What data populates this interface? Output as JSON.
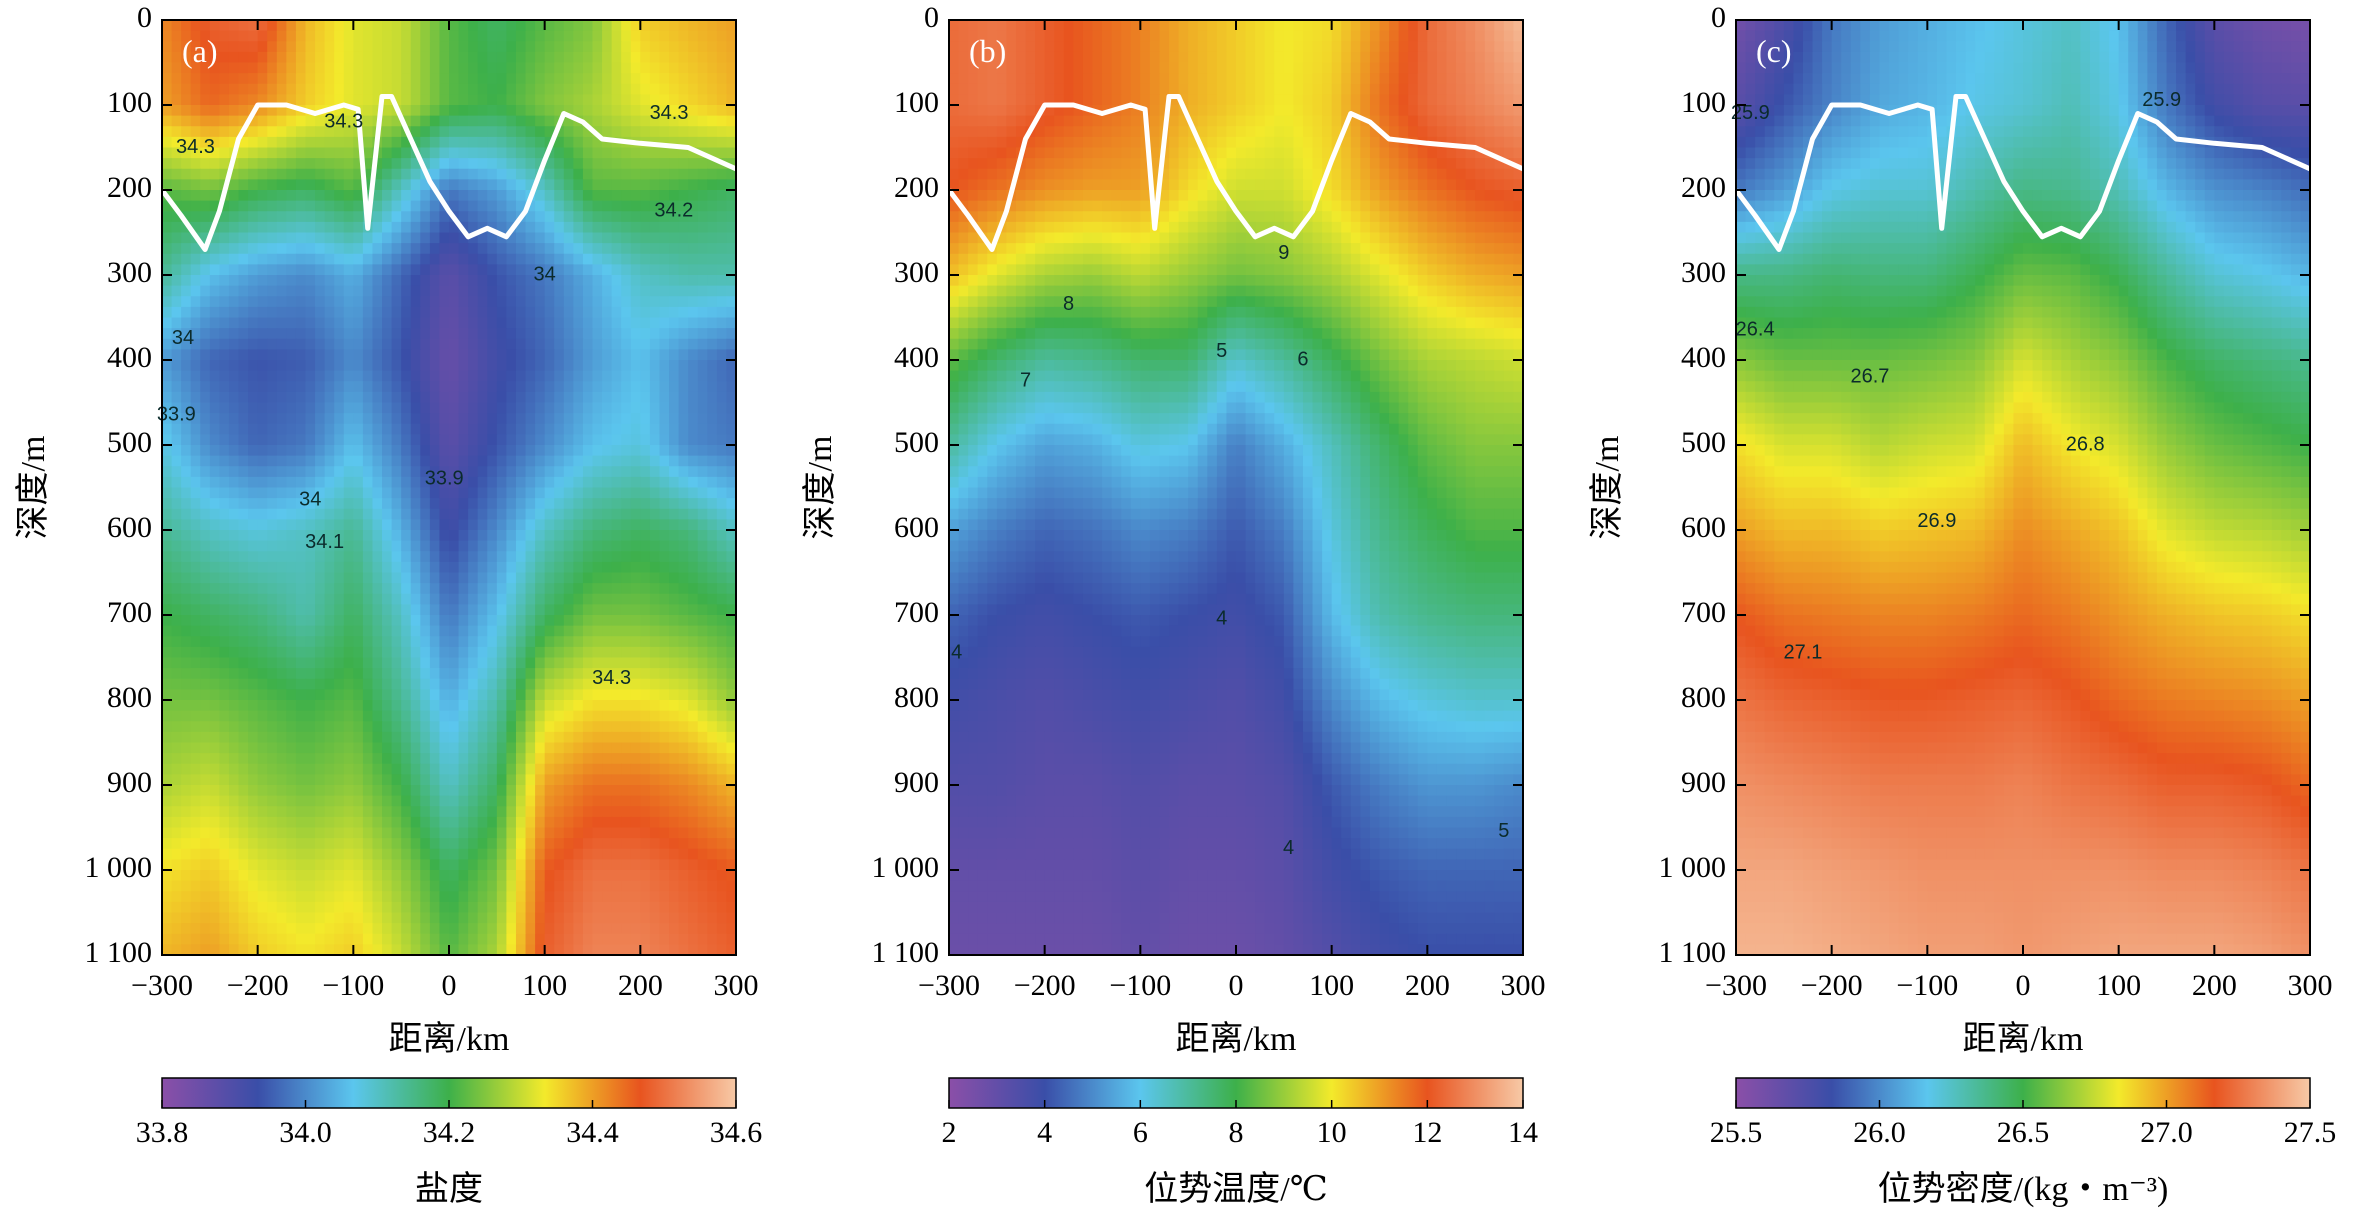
{
  "chart_data": [
    {
      "type": "heatmap",
      "panel_label": "(a)",
      "xlabel": "距离/km",
      "ylabel": "深度/m",
      "xlim": [
        -300,
        300
      ],
      "ylim": [
        1100,
        0
      ],
      "x_ticks": [
        -300,
        -200,
        -100,
        0,
        100,
        200,
        300
      ],
      "x_tick_labels": [
        "−300",
        "−200",
        "−100",
        "0",
        "100",
        "200",
        "300"
      ],
      "y_ticks": [
        0,
        100,
        200,
        300,
        400,
        500,
        600,
        700,
        800,
        900,
        1000,
        1100
      ],
      "y_tick_labels": [
        "0",
        "100",
        "200",
        "300",
        "400",
        "500",
        "600",
        "700",
        "800",
        "900",
        "1 000",
        "1 100"
      ],
      "colorbar": {
        "label": "盐度",
        "range": [
          33.8,
          34.6
        ],
        "ticks": [
          33.8,
          34.0,
          34.2,
          34.4,
          34.6
        ],
        "tick_labels": [
          "33.8",
          "34.0",
          "34.2",
          "34.4",
          "34.6"
        ],
        "colors": [
          "#8b4fa8",
          "#3a4ea8",
          "#5bc6ee",
          "#3db04a",
          "#f3ea2b",
          "#e8541f",
          "#f7c9a6"
        ]
      },
      "mixed_layer_line": {
        "color": "#ffffff",
        "x": [
          -300,
          -280,
          -255,
          -240,
          -220,
          -200,
          -170,
          -140,
          -110,
          -95,
          -85,
          -70,
          -60,
          -40,
          -20,
          0,
          20,
          40,
          60,
          80,
          100,
          120,
          140,
          160,
          200,
          250,
          300
        ],
        "y": [
          200,
          230,
          270,
          225,
          140,
          100,
          100,
          110,
          100,
          105,
          245,
          90,
          90,
          140,
          190,
          225,
          255,
          245,
          255,
          225,
          165,
          110,
          120,
          140,
          145,
          150,
          175
        ]
      },
      "contour_labels": [
        {
          "text": "34.3",
          "x": -265,
          "y": 150
        },
        {
          "text": "34.3",
          "x": -110,
          "y": 120
        },
        {
          "text": "34.3",
          "x": 230,
          "y": 110
        },
        {
          "text": "34.2",
          "x": 235,
          "y": 225
        },
        {
          "text": "34",
          "x": 100,
          "y": 300
        },
        {
          "text": "34",
          "x": -278,
          "y": 375
        },
        {
          "text": "33.9",
          "x": -285,
          "y": 465
        },
        {
          "text": "33.9",
          "x": -5,
          "y": 540
        },
        {
          "text": "34",
          "x": -145,
          "y": 565
        },
        {
          "text": "34.1",
          "x": -130,
          "y": 615
        },
        {
          "text": "34.3",
          "x": 170,
          "y": 775
        }
      ],
      "x_samples": [
        -300,
        -250,
        -200,
        -150,
        -100,
        -50,
        0,
        50,
        100,
        150,
        200,
        250,
        300
      ],
      "y_samples": [
        0,
        100,
        200,
        300,
        400,
        500,
        600,
        700,
        800,
        900,
        1000,
        1100
      ],
      "values": [
        [
          34.42,
          34.48,
          34.5,
          34.38,
          34.32,
          34.3,
          34.22,
          34.18,
          34.22,
          34.25,
          34.36,
          34.38,
          34.4
        ],
        [
          34.4,
          34.45,
          34.42,
          34.36,
          34.32,
          34.3,
          34.22,
          34.2,
          34.25,
          34.28,
          34.32,
          34.35,
          34.38
        ],
        [
          34.22,
          34.24,
          34.2,
          34.18,
          34.22,
          34.1,
          33.98,
          34.02,
          34.1,
          34.22,
          34.22,
          34.2,
          34.18
        ],
        [
          34.14,
          34.06,
          34.02,
          34.0,
          34.04,
          33.96,
          33.88,
          33.94,
          33.98,
          34.04,
          34.1,
          34.12,
          34.12
        ],
        [
          34.02,
          33.96,
          33.94,
          33.95,
          34.0,
          33.94,
          33.86,
          33.92,
          33.96,
          34.02,
          34.06,
          34.0,
          33.96
        ],
        [
          34.08,
          34.0,
          33.96,
          33.98,
          34.06,
          33.98,
          33.88,
          33.94,
          34.0,
          34.06,
          34.08,
          34.0,
          33.98
        ],
        [
          34.14,
          34.1,
          34.08,
          34.1,
          34.14,
          34.04,
          33.92,
          34.0,
          34.1,
          34.16,
          34.18,
          34.16,
          34.1
        ],
        [
          34.2,
          34.18,
          34.16,
          34.12,
          34.18,
          34.1,
          33.98,
          34.06,
          34.18,
          34.24,
          34.24,
          34.22,
          34.2
        ],
        [
          34.24,
          34.24,
          34.22,
          34.2,
          34.22,
          34.14,
          34.04,
          34.12,
          34.3,
          34.34,
          34.34,
          34.32,
          34.26
        ],
        [
          34.28,
          34.3,
          34.26,
          34.24,
          34.26,
          34.2,
          34.1,
          34.18,
          34.4,
          34.44,
          34.44,
          34.42,
          34.38
        ],
        [
          34.34,
          34.36,
          34.32,
          34.3,
          34.32,
          34.26,
          34.18,
          34.24,
          34.46,
          34.5,
          34.5,
          34.48,
          34.46
        ],
        [
          34.38,
          34.4,
          34.36,
          34.34,
          34.36,
          34.3,
          34.22,
          34.28,
          34.48,
          34.52,
          34.52,
          34.5,
          34.48
        ]
      ]
    },
    {
      "type": "heatmap",
      "panel_label": "(b)",
      "xlabel": "距离/km",
      "ylabel": "深度/m",
      "xlim": [
        -300,
        300
      ],
      "ylim": [
        1100,
        0
      ],
      "x_ticks": [
        -300,
        -200,
        -100,
        0,
        100,
        200,
        300
      ],
      "x_tick_labels": [
        "−300",
        "−200",
        "−100",
        "0",
        "100",
        "200",
        "300"
      ],
      "y_ticks": [
        0,
        100,
        200,
        300,
        400,
        500,
        600,
        700,
        800,
        900,
        1000,
        1100
      ],
      "y_tick_labels": [
        "0",
        "100",
        "200",
        "300",
        "400",
        "500",
        "600",
        "700",
        "800",
        "900",
        "1 000",
        "1 100"
      ],
      "colorbar": {
        "label": "位势温度/℃",
        "range": [
          2,
          14
        ],
        "ticks": [
          2,
          4,
          6,
          8,
          10,
          12,
          14
        ],
        "tick_labels": [
          "2",
          "4",
          "6",
          "8",
          "10",
          "12",
          "14"
        ],
        "colors": [
          "#8b4fa8",
          "#3a4ea8",
          "#5bc6ee",
          "#3db04a",
          "#f3ea2b",
          "#e8541f",
          "#f7c9a6"
        ]
      },
      "mixed_layer_line": {
        "color": "#ffffff",
        "x": [
          -300,
          -280,
          -255,
          -240,
          -220,
          -200,
          -170,
          -140,
          -110,
          -95,
          -85,
          -70,
          -60,
          -40,
          -20,
          0,
          20,
          40,
          60,
          80,
          100,
          120,
          140,
          160,
          200,
          250,
          300
        ],
        "y": [
          200,
          230,
          270,
          225,
          140,
          100,
          100,
          110,
          100,
          105,
          245,
          90,
          90,
          140,
          190,
          225,
          255,
          245,
          255,
          225,
          165,
          110,
          120,
          140,
          145,
          150,
          175
        ]
      },
      "contour_labels": [
        {
          "text": "9",
          "x": 50,
          "y": 275
        },
        {
          "text": "8",
          "x": -175,
          "y": 335
        },
        {
          "text": "7",
          "x": -220,
          "y": 425
        },
        {
          "text": "6",
          "x": 70,
          "y": 400
        },
        {
          "text": "5",
          "x": -15,
          "y": 390
        },
        {
          "text": "4",
          "x": -15,
          "y": 705
        },
        {
          "text": "4",
          "x": -292,
          "y": 745
        },
        {
          "text": "4",
          "x": 55,
          "y": 975
        },
        {
          "text": "5",
          "x": 280,
          "y": 955
        }
      ],
      "x_samples": [
        -300,
        -250,
        -200,
        -150,
        -100,
        -50,
        0,
        50,
        100,
        150,
        200,
        250,
        300
      ],
      "y_samples": [
        0,
        100,
        200,
        300,
        400,
        500,
        600,
        700,
        800,
        900,
        1000,
        1100
      ],
      "values": [
        [
          12.4,
          12.6,
          12.2,
          11.8,
          11.4,
          10.8,
          10.4,
          10.0,
          10.2,
          11.2,
          12.4,
          13.0,
          13.8
        ],
        [
          12.4,
          12.6,
          12.2,
          11.8,
          11.4,
          10.8,
          10.4,
          10.0,
          10.4,
          11.6,
          12.4,
          12.8,
          13.2
        ],
        [
          12.0,
          11.6,
          11.2,
          11.0,
          11.0,
          10.2,
          9.6,
          9.6,
          10.2,
          11.0,
          11.6,
          12.0,
          12.2
        ],
        [
          10.6,
          9.8,
          9.2,
          9.0,
          9.4,
          9.0,
          8.6,
          8.8,
          9.2,
          9.8,
          10.4,
          10.8,
          11.0
        ],
        [
          8.4,
          7.6,
          7.0,
          7.2,
          7.6,
          7.6,
          6.4,
          7.0,
          7.8,
          8.6,
          9.2,
          9.4,
          9.6
        ],
        [
          7.0,
          6.0,
          5.4,
          5.6,
          6.2,
          6.0,
          4.8,
          5.6,
          6.6,
          7.6,
          8.4,
          8.8,
          8.8
        ],
        [
          5.4,
          4.8,
          4.4,
          4.6,
          5.0,
          4.8,
          4.2,
          4.8,
          6.2,
          7.2,
          7.8,
          8.2,
          8.2
        ],
        [
          4.4,
          4.0,
          3.8,
          4.0,
          4.2,
          4.0,
          3.8,
          4.2,
          5.8,
          6.8,
          7.2,
          7.4,
          7.4
        ],
        [
          3.8,
          3.6,
          3.4,
          3.6,
          3.8,
          3.6,
          3.4,
          3.8,
          5.0,
          5.8,
          6.2,
          6.4,
          6.4
        ],
        [
          3.4,
          3.4,
          3.2,
          3.2,
          3.4,
          3.2,
          3.2,
          3.4,
          4.2,
          4.8,
          5.2,
          5.2,
          5.0
        ],
        [
          3.0,
          3.0,
          3.0,
          3.0,
          3.2,
          3.0,
          3.0,
          3.2,
          3.8,
          4.2,
          4.4,
          4.4,
          4.4
        ],
        [
          2.8,
          2.8,
          2.8,
          2.8,
          3.0,
          2.8,
          2.8,
          3.0,
          3.4,
          3.8,
          4.0,
          4.0,
          4.0
        ]
      ]
    },
    {
      "type": "heatmap",
      "panel_label": "(c)",
      "xlabel": "距离/km",
      "ylabel": "深度/m",
      "xlim": [
        -300,
        300
      ],
      "ylim": [
        1100,
        0
      ],
      "x_ticks": [
        -300,
        -200,
        -100,
        0,
        100,
        200,
        300
      ],
      "x_tick_labels": [
        "−300",
        "−200",
        "−100",
        "0",
        "100",
        "200",
        "300"
      ],
      "y_ticks": [
        0,
        100,
        200,
        300,
        400,
        500,
        600,
        700,
        800,
        900,
        1000,
        1100
      ],
      "y_tick_labels": [
        "0",
        "100",
        "200",
        "300",
        "400",
        "500",
        "600",
        "700",
        "800",
        "900",
        "1 000",
        "1 100"
      ],
      "colorbar": {
        "label": "位势密度/(kg・m⁻³)",
        "range": [
          25.5,
          27.5
        ],
        "ticks": [
          25.5,
          26.0,
          26.5,
          27.0,
          27.5
        ],
        "tick_labels": [
          "25.5",
          "26.0",
          "26.5",
          "27.0",
          "27.5"
        ],
        "colors": [
          "#8b4fa8",
          "#3a4ea8",
          "#5bc6ee",
          "#3db04a",
          "#f3ea2b",
          "#e8541f",
          "#f7c9a6"
        ]
      },
      "mixed_layer_line": {
        "color": "#ffffff",
        "x": [
          -300,
          -280,
          -255,
          -240,
          -220,
          -200,
          -170,
          -140,
          -110,
          -95,
          -85,
          -70,
          -60,
          -40,
          -20,
          0,
          20,
          40,
          60,
          80,
          100,
          120,
          140,
          160,
          200,
          250,
          300
        ],
        "y": [
          200,
          230,
          270,
          225,
          140,
          100,
          100,
          110,
          100,
          105,
          245,
          90,
          90,
          140,
          190,
          225,
          255,
          245,
          255,
          225,
          165,
          110,
          120,
          140,
          145,
          150,
          175
        ]
      },
      "contour_labels": [
        {
          "text": "25.9",
          "x": -285,
          "y": 110
        },
        {
          "text": "25.9",
          "x": 145,
          "y": 95
        },
        {
          "text": "26.4",
          "x": -280,
          "y": 365
        },
        {
          "text": "26.7",
          "x": -160,
          "y": 420
        },
        {
          "text": "26.8",
          "x": 65,
          "y": 500
        },
        {
          "text": "26.9",
          "x": -90,
          "y": 590
        },
        {
          "text": "27.1",
          "x": -230,
          "y": 745
        }
      ],
      "x_samples": [
        -300,
        -250,
        -200,
        -150,
        -100,
        -50,
        0,
        50,
        100,
        150,
        200,
        250,
        300
      ],
      "y_samples": [
        0,
        100,
        200,
        300,
        400,
        500,
        600,
        700,
        800,
        900,
        1000,
        1100
      ],
      "values": [
        [
          25.6,
          25.75,
          25.95,
          26.05,
          26.1,
          26.15,
          26.2,
          26.25,
          26.15,
          25.9,
          25.7,
          25.62,
          25.58
        ],
        [
          25.7,
          25.85,
          25.98,
          26.08,
          26.12,
          26.18,
          26.22,
          26.28,
          26.18,
          25.95,
          25.8,
          25.72,
          25.7
        ],
        [
          25.95,
          26.05,
          26.18,
          26.22,
          26.22,
          26.3,
          26.38,
          26.36,
          26.28,
          26.12,
          26.02,
          25.98,
          25.92
        ],
        [
          26.38,
          26.38,
          26.42,
          26.4,
          26.4,
          26.48,
          26.58,
          26.56,
          26.48,
          26.34,
          26.22,
          26.18,
          26.12
        ],
        [
          26.64,
          26.58,
          26.58,
          26.58,
          26.6,
          26.64,
          26.78,
          26.7,
          26.64,
          26.52,
          26.44,
          26.4,
          26.36
        ],
        [
          26.86,
          26.78,
          26.78,
          26.72,
          26.76,
          26.78,
          26.94,
          26.84,
          26.78,
          26.66,
          26.58,
          26.54,
          26.5
        ],
        [
          27.0,
          26.94,
          26.94,
          26.9,
          26.92,
          26.94,
          27.04,
          26.98,
          26.92,
          26.8,
          26.74,
          26.72,
          26.68
        ],
        [
          27.16,
          27.1,
          27.08,
          27.06,
          27.06,
          27.08,
          27.12,
          27.08,
          27.02,
          26.96,
          26.92,
          26.9,
          26.86
        ],
        [
          27.26,
          27.22,
          27.2,
          27.18,
          27.18,
          27.2,
          27.22,
          27.18,
          27.12,
          27.08,
          27.06,
          27.04,
          27.0
        ],
        [
          27.34,
          27.32,
          27.3,
          27.28,
          27.28,
          27.28,
          27.3,
          27.26,
          27.24,
          27.2,
          27.2,
          27.18,
          27.12
        ],
        [
          27.4,
          27.4,
          27.38,
          27.36,
          27.34,
          27.34,
          27.34,
          27.34,
          27.34,
          27.32,
          27.32,
          27.3,
          27.26
        ],
        [
          27.44,
          27.44,
          27.42,
          27.4,
          27.38,
          27.38,
          27.36,
          27.38,
          27.4,
          27.4,
          27.4,
          27.38,
          27.34
        ]
      ]
    }
  ]
}
